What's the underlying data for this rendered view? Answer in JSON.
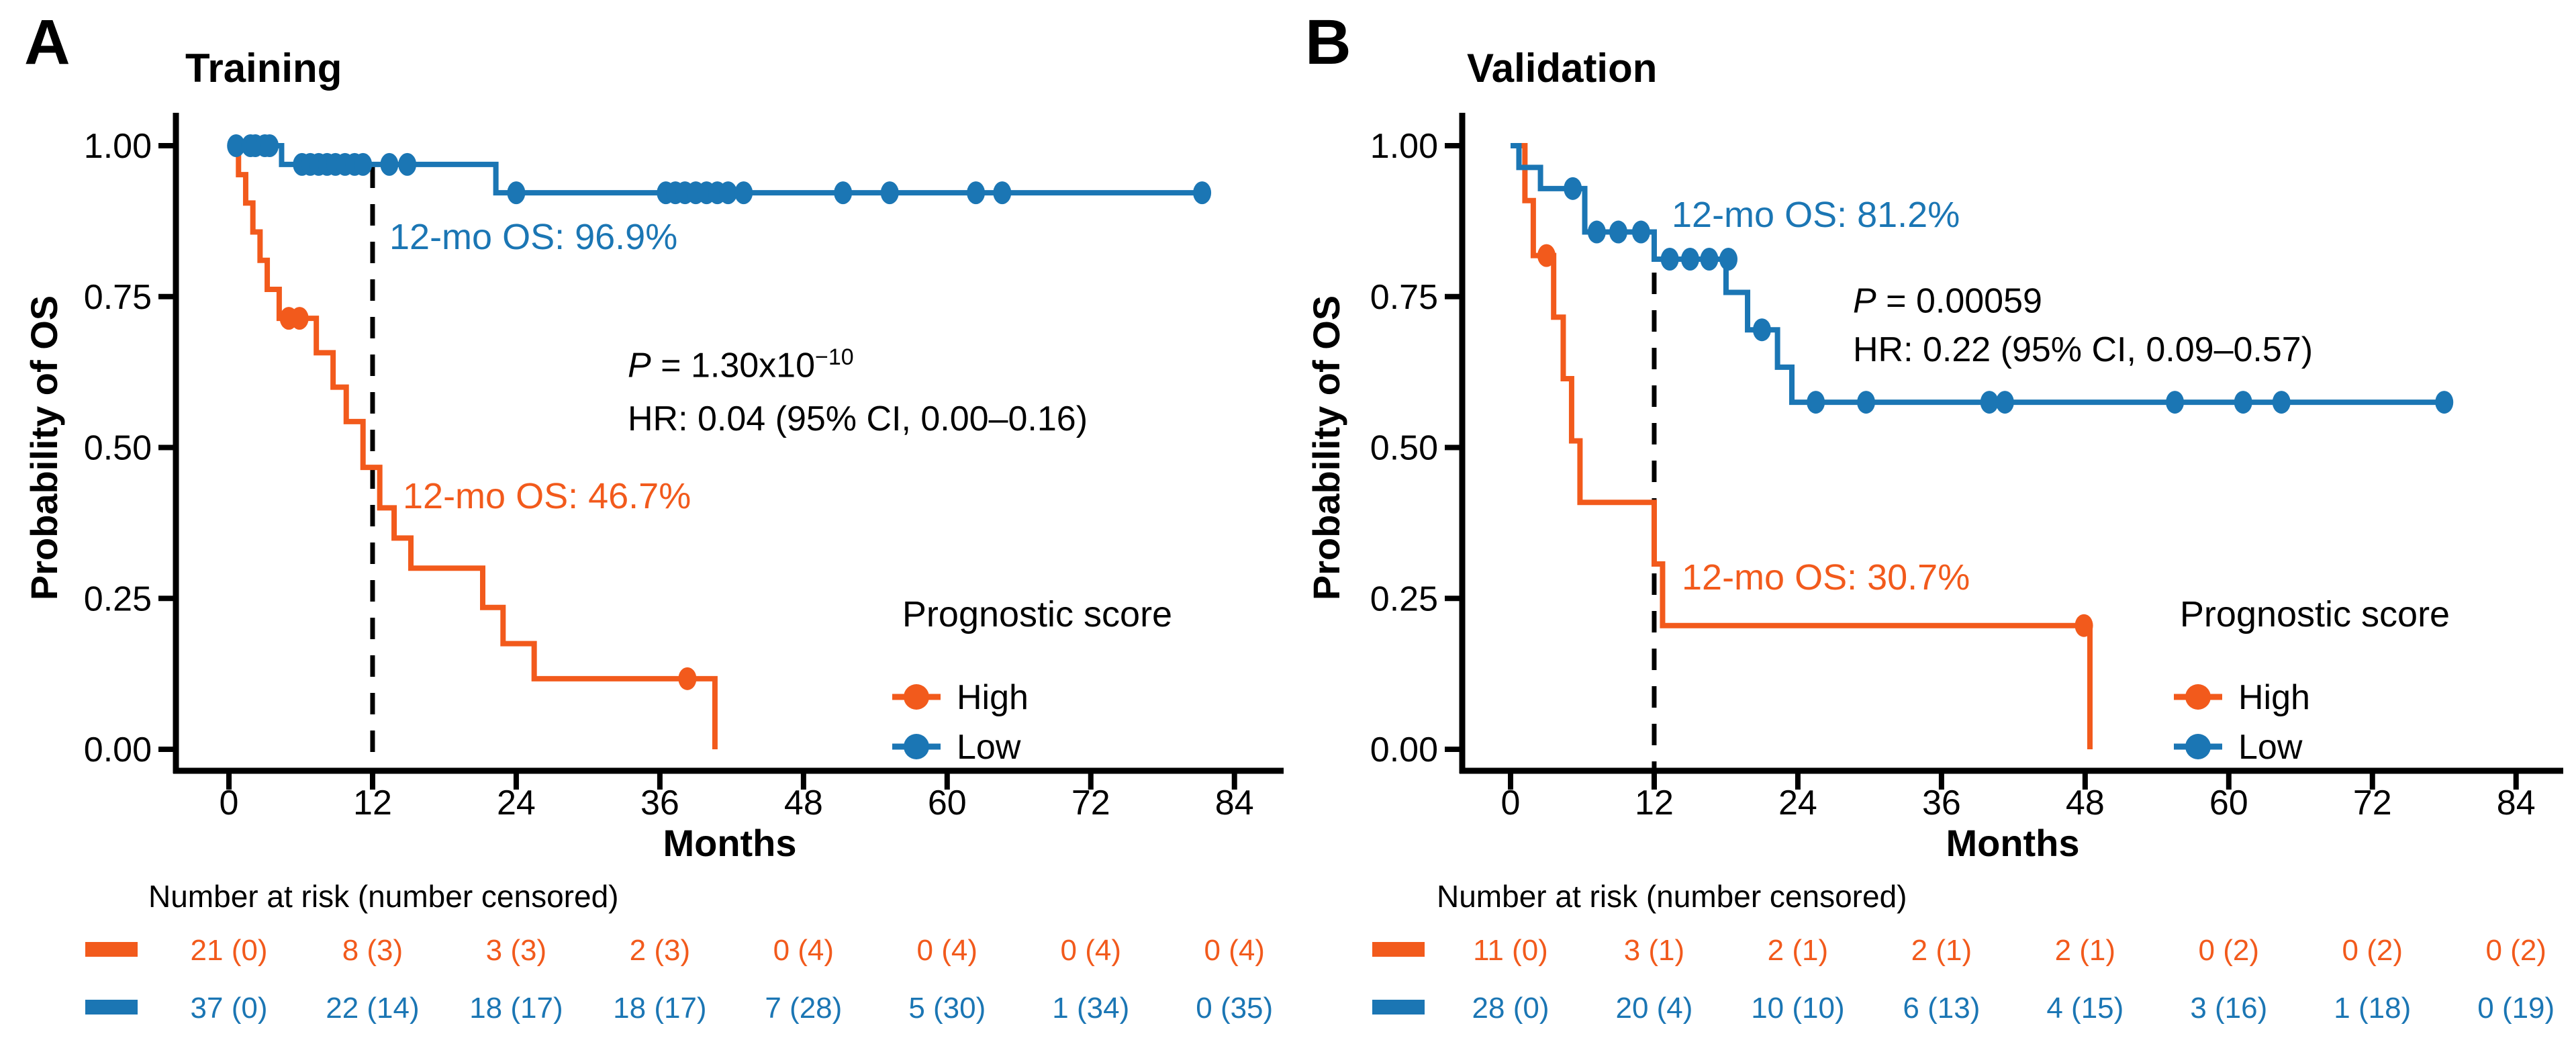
{
  "figure_type": "Kaplan-Meier survival curves, two panels",
  "chart_data": [
    {
      "type": "line",
      "subtype": "kaplan-meier-step",
      "panel_label": "A",
      "title": "Training",
      "xlabel": "Months",
      "ylabel": "Probability of OS",
      "xlim": [
        0,
        84
      ],
      "ylim": [
        0,
        1
      ],
      "xticks": [
        0,
        12,
        24,
        36,
        48,
        60,
        72,
        84
      ],
      "yticks": [
        0,
        0.25,
        0.5,
        0.75,
        1
      ],
      "ytick_labels": [
        "0.00",
        "0.25",
        "0.50",
        "0.75",
        "1.00"
      ],
      "grid": false,
      "dashed_line_x": 12,
      "legend_title": "Prognostic score",
      "legend_position": "inside bottom-right",
      "series": [
        {
          "name": "High",
          "color": "#F25A1C",
          "steps": [
            [
              0,
              1
            ],
            [
              0.8,
              0.952
            ],
            [
              1.4,
              0.905
            ],
            [
              2.0,
              0.857
            ],
            [
              2.6,
              0.81
            ],
            [
              3.2,
              0.762
            ],
            [
              4.2,
              0.714
            ],
            [
              7.3,
              0.657
            ],
            [
              8.7,
              0.6
            ],
            [
              9.8,
              0.543
            ],
            [
              11.2,
              0.467
            ],
            [
              12.6,
              0.4
            ],
            [
              13.8,
              0.35
            ],
            [
              15.2,
              0.3
            ],
            [
              21.2,
              0.235
            ],
            [
              22.9,
              0.175
            ],
            [
              25.5,
              0.117
            ],
            [
              40.6,
              0
            ]
          ],
          "censor_marks": [
            [
              5.0,
              0.714
            ],
            [
              5.9,
              0.714
            ],
            [
              38.3,
              0.117
            ]
          ]
        },
        {
          "name": "Low",
          "color": "#1B76B4",
          "steps": [
            [
              0,
              1
            ],
            [
              4.4,
              0.969
            ],
            [
              22.3,
              0.922
            ],
            [
              81.3,
              0.922
            ]
          ],
          "censor_marks": [
            [
              0.6,
              1
            ],
            [
              1.8,
              1
            ],
            [
              2.2,
              1
            ],
            [
              3.0,
              1
            ],
            [
              3.4,
              1
            ],
            [
              6.1,
              0.969
            ],
            [
              6.8,
              0.969
            ],
            [
              7.5,
              0.969
            ],
            [
              8.2,
              0.969
            ],
            [
              8.9,
              0.969
            ],
            [
              9.7,
              0.969
            ],
            [
              10.5,
              0.969
            ],
            [
              11.2,
              0.969
            ],
            [
              13.4,
              0.969
            ],
            [
              14.9,
              0.969
            ],
            [
              24.0,
              0.922
            ],
            [
              36.5,
              0.922
            ],
            [
              37.3,
              0.922
            ],
            [
              38.1,
              0.922
            ],
            [
              39.0,
              0.922
            ],
            [
              39.9,
              0.922
            ],
            [
              40.8,
              0.922
            ],
            [
              41.7,
              0.922
            ],
            [
              43.0,
              0.922
            ],
            [
              51.3,
              0.922
            ],
            [
              55.2,
              0.922
            ],
            [
              62.4,
              0.922
            ],
            [
              64.6,
              0.922
            ],
            [
              81.3,
              0.922
            ]
          ]
        }
      ],
      "annotations": {
        "os_low": "12-mo OS: 96.9%",
        "os_high": "12-mo OS: 46.7%",
        "pvalue": {
          "lead": "P",
          "rest": " = 1.30x10",
          "sup": "−10"
        },
        "hr": "HR: 0.04 (95% CI, 0.00–0.16)"
      },
      "risk_table": {
        "header": "Number at risk (number censored)",
        "rows": [
          {
            "name": "High",
            "color": "#F25A1C",
            "values": [
              "21 (0)",
              "8 (3)",
              "3 (3)",
              "2 (3)",
              "0 (4)",
              "0 (4)",
              "0 (4)",
              "0 (4)"
            ]
          },
          {
            "name": "Low",
            "color": "#1B76B4",
            "values": [
              "37 (0)",
              "22 (14)",
              "18 (17)",
              "18 (17)",
              "7 (28)",
              "5 (30)",
              "1 (34)",
              "0 (35)"
            ]
          }
        ]
      }
    },
    {
      "type": "line",
      "subtype": "kaplan-meier-step",
      "panel_label": "B",
      "title": "Validation",
      "xlabel": "Months",
      "ylabel": "Probability of OS",
      "xlim": [
        0,
        84
      ],
      "ylim": [
        0,
        1
      ],
      "xticks": [
        0,
        12,
        24,
        36,
        48,
        60,
        72,
        84
      ],
      "yticks": [
        0,
        0.25,
        0.5,
        0.75,
        1
      ],
      "ytick_labels": [
        "0.00",
        "0.25",
        "0.50",
        "0.75",
        "1.00"
      ],
      "grid": false,
      "dashed_line_x": 12,
      "legend_title": "Prognostic score",
      "legend_position": "inside bottom-right",
      "series": [
        {
          "name": "High",
          "color": "#F25A1C",
          "steps": [
            [
              0,
              1
            ],
            [
              1.2,
              0.909
            ],
            [
              1.9,
              0.818
            ],
            [
              3.6,
              0.716
            ],
            [
              4.4,
              0.614
            ],
            [
              5.1,
              0.511
            ],
            [
              5.8,
              0.409
            ],
            [
              12.0,
              0.307
            ],
            [
              12.7,
              0.205
            ],
            [
              48.4,
              0
            ]
          ],
          "censor_marks": [
            [
              3.0,
              0.818
            ],
            [
              47.9,
              0.205
            ]
          ]
        },
        {
          "name": "Low",
          "color": "#1B76B4",
          "steps": [
            [
              0,
              1
            ],
            [
              0.7,
              0.964
            ],
            [
              2.5,
              0.929
            ],
            [
              6.2,
              0.857
            ],
            [
              12.0,
              0.812
            ],
            [
              18.0,
              0.757
            ],
            [
              19.8,
              0.695
            ],
            [
              22.3,
              0.633
            ],
            [
              23.5,
              0.575
            ],
            [
              78.0,
              0.575
            ]
          ],
          "censor_marks": [
            [
              5.2,
              0.929
            ],
            [
              7.2,
              0.857
            ],
            [
              9.0,
              0.857
            ],
            [
              10.9,
              0.857
            ],
            [
              13.3,
              0.812
            ],
            [
              15.0,
              0.812
            ],
            [
              16.6,
              0.812
            ],
            [
              18.2,
              0.812
            ],
            [
              21.0,
              0.695
            ],
            [
              25.5,
              0.575
            ],
            [
              29.7,
              0.575
            ],
            [
              40.0,
              0.575
            ],
            [
              41.3,
              0.575
            ],
            [
              55.5,
              0.575
            ],
            [
              61.2,
              0.575
            ],
            [
              64.4,
              0.575
            ],
            [
              78.0,
              0.575
            ]
          ]
        }
      ],
      "annotations": {
        "os_low": "12-mo OS: 81.2%",
        "os_high": "12-mo OS: 30.7%",
        "pvalue": {
          "lead": "P",
          "rest": " = 0.00059",
          "sup": ""
        },
        "hr": "HR: 0.22 (95% CI, 0.09–0.57)"
      },
      "risk_table": {
        "header": "Number at risk (number censored)",
        "rows": [
          {
            "name": "High",
            "color": "#F25A1C",
            "values": [
              "11 (0)",
              "3 (1)",
              "2 (1)",
              "2 (1)",
              "2 (1)",
              "0 (2)",
              "0 (2)",
              "0 (2)"
            ]
          },
          {
            "name": "Low",
            "color": "#1B76B4",
            "values": [
              "28 (0)",
              "20 (4)",
              "10 (10)",
              "6 (13)",
              "4 (15)",
              "3 (16)",
              "1 (18)",
              "0 (19)"
            ]
          }
        ]
      }
    }
  ]
}
